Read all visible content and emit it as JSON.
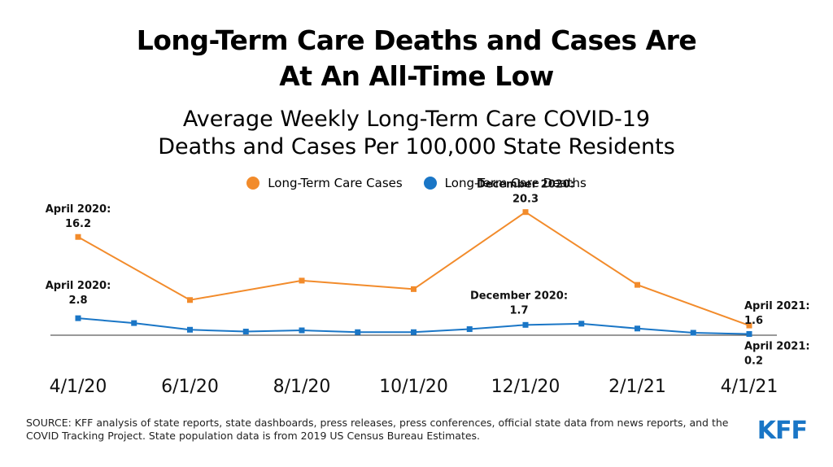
{
  "header": {
    "title_line1": "Long-Term Care Deaths and Cases Are",
    "title_line2": "At An All-Time Low",
    "subtitle_line1": "Average Weekly Long-Term Care COVID-19",
    "subtitle_line2": "Deaths and Cases Per 100,000 State Residents"
  },
  "chart_data": {
    "type": "line",
    "title": "Long-Term Care Deaths and Cases Are At An All-Time Low",
    "subtitle": "Average Weekly Long-Term Care COVID-19 Deaths and Cases Per 100,000 State Residents",
    "x": [
      "4/1/20",
      "5/1/20",
      "6/1/20",
      "7/1/20",
      "8/1/20",
      "9/1/20",
      "10/1/20",
      "11/1/20",
      "12/1/20",
      "1/1/21",
      "2/1/21",
      "3/1/21",
      "4/1/21"
    ],
    "tick_labels": [
      "4/1/20",
      "6/1/20",
      "8/1/20",
      "10/1/20",
      "12/1/20",
      "2/1/21",
      "4/1/21"
    ],
    "ylim": [
      0,
      22
    ],
    "grid": false,
    "legend_position": "top-center",
    "series": [
      {
        "name": "Long-Term Care Cases",
        "color": "#f28b2b",
        "x": [
          "4/1/20",
          "6/1/20",
          "8/1/20",
          "10/1/20",
          "12/1/20",
          "2/1/21",
          "4/1/21"
        ],
        "values": [
          16.2,
          5.8,
          9.0,
          7.6,
          20.3,
          8.3,
          1.6
        ]
      },
      {
        "name": "Long-Term Care Deaths",
        "color": "#1a76c6",
        "x": [
          "4/1/20",
          "5/1/20",
          "6/1/20",
          "7/1/20",
          "8/1/20",
          "9/1/20",
          "10/1/20",
          "11/1/20",
          "12/1/20",
          "1/1/21",
          "2/1/21",
          "3/1/21",
          "4/1/21"
        ],
        "values": [
          2.8,
          2.0,
          0.9,
          0.6,
          0.8,
          0.5,
          0.5,
          1.0,
          1.7,
          1.9,
          1.1,
          0.4,
          0.2
        ]
      }
    ],
    "annotations": [
      {
        "series": 0,
        "index": 0,
        "line1": "April 2020:",
        "line2": "16.2"
      },
      {
        "series": 1,
        "index": 0,
        "line1": "April 2020:",
        "line2": "2.8"
      },
      {
        "series": 0,
        "index": 4,
        "line1": "December 2020:",
        "line2": "20.3"
      },
      {
        "series": 1,
        "index": 8,
        "line1": "December 2020:",
        "line2": "1.7"
      },
      {
        "series": 0,
        "index": 6,
        "line1": "April 2021:",
        "line2": "1.6"
      },
      {
        "series": 1,
        "index": 12,
        "line1": "April 2021:",
        "line2": "0.2"
      }
    ]
  },
  "footer": {
    "source_line1": "SOURCE: KFF analysis of state reports, state dashboards, press releases, press conferences, official state data from news reports, and the",
    "source_line2": "COVID Tracking Project. State population data is from 2019 US Census Bureau Estimates.",
    "logo": "KFF"
  }
}
